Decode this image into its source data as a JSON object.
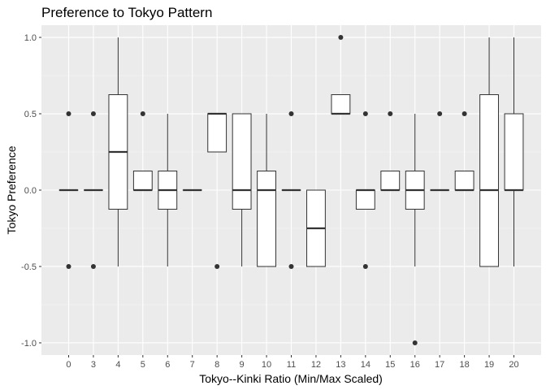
{
  "chart_data": {
    "type": "box",
    "title": "Preference to Tokyo Pattern",
    "xlabel": "Tokyo--Kinki Ratio (Min/Max Scaled)",
    "ylabel": "Tokyo Preference",
    "ylim": [
      -1.08,
      1.08
    ],
    "yticks": [
      "-1.0",
      "-0.5",
      "0.0",
      "0.5",
      "1.0"
    ],
    "ytick_values": [
      -1.0,
      -0.5,
      0.0,
      0.5,
      1.0
    ],
    "grid": true,
    "categories": [
      "0",
      "3",
      "4",
      "5",
      "6",
      "7",
      "8",
      "9",
      "10",
      "11",
      "12",
      "13",
      "14",
      "15",
      "16",
      "17",
      "18",
      "19",
      "20"
    ],
    "boxes": [
      {
        "q1": 0,
        "median": 0,
        "q3": 0,
        "whisker_low": 0,
        "whisker_high": 0,
        "outliers": [
          0.5,
          -0.5
        ]
      },
      {
        "q1": 0,
        "median": 0,
        "q3": 0,
        "whisker_low": 0,
        "whisker_high": 0,
        "outliers": [
          0.5,
          -0.5
        ]
      },
      {
        "q1": -0.125,
        "median": 0.25,
        "q3": 0.625,
        "whisker_low": -0.5,
        "whisker_high": 1.0,
        "outliers": []
      },
      {
        "q1": 0,
        "median": 0,
        "q3": 0.125,
        "whisker_low": 0,
        "whisker_high": 0.125,
        "outliers": [
          0.5
        ]
      },
      {
        "q1": -0.125,
        "median": 0,
        "q3": 0.125,
        "whisker_low": -0.5,
        "whisker_high": 0.5,
        "outliers": []
      },
      {
        "q1": 0,
        "median": 0,
        "q3": 0,
        "whisker_low": 0,
        "whisker_high": 0,
        "outliers": []
      },
      {
        "q1": 0.25,
        "median": 0.5,
        "q3": 0.5,
        "whisker_low": 0.25,
        "whisker_high": 0.5,
        "outliers": [
          -0.5
        ]
      },
      {
        "q1": -0.125,
        "median": 0,
        "q3": 0.5,
        "whisker_low": -0.5,
        "whisker_high": 0.5,
        "outliers": []
      },
      {
        "q1": -0.5,
        "median": 0,
        "q3": 0.125,
        "whisker_low": -0.5,
        "whisker_high": 0.5,
        "outliers": []
      },
      {
        "q1": 0,
        "median": 0,
        "q3": 0,
        "whisker_low": 0,
        "whisker_high": 0,
        "outliers": [
          0.5,
          -0.5
        ]
      },
      {
        "q1": -0.5,
        "median": -0.25,
        "q3": 0,
        "whisker_low": -0.5,
        "whisker_high": 0,
        "outliers": []
      },
      {
        "q1": 0.5,
        "median": 0.5,
        "q3": 0.625,
        "whisker_low": 0.5,
        "whisker_high": 0.625,
        "outliers": [
          1.0
        ]
      },
      {
        "q1": -0.125,
        "median": 0,
        "q3": 0,
        "whisker_low": -0.125,
        "whisker_high": 0,
        "outliers": [
          0.5,
          -0.5
        ]
      },
      {
        "q1": 0,
        "median": 0,
        "q3": 0.125,
        "whisker_low": 0,
        "whisker_high": 0.125,
        "outliers": [
          0.5
        ]
      },
      {
        "q1": -0.125,
        "median": 0,
        "q3": 0.125,
        "whisker_low": -0.5,
        "whisker_high": 0.5,
        "outliers": [
          -1.0
        ]
      },
      {
        "q1": 0,
        "median": 0,
        "q3": 0,
        "whisker_low": 0,
        "whisker_high": 0,
        "outliers": [
          0.5
        ]
      },
      {
        "q1": 0,
        "median": 0,
        "q3": 0.125,
        "whisker_low": 0,
        "whisker_high": 0.125,
        "outliers": [
          0.5
        ]
      },
      {
        "q1": -0.5,
        "median": 0,
        "q3": 0.625,
        "whisker_low": -0.5,
        "whisker_high": 1.0,
        "outliers": []
      },
      {
        "q1": 0,
        "median": 0,
        "q3": 0.5,
        "whisker_low": -0.5,
        "whisker_high": 1.0,
        "outliers": []
      }
    ],
    "colors": {
      "panel": "#ebebeb",
      "grid_major": "#ffffff",
      "grid_minor": "#f5f5f5",
      "box_fill": "#ffffff",
      "box_line": "#333333",
      "tick_mark": "#333333"
    }
  }
}
